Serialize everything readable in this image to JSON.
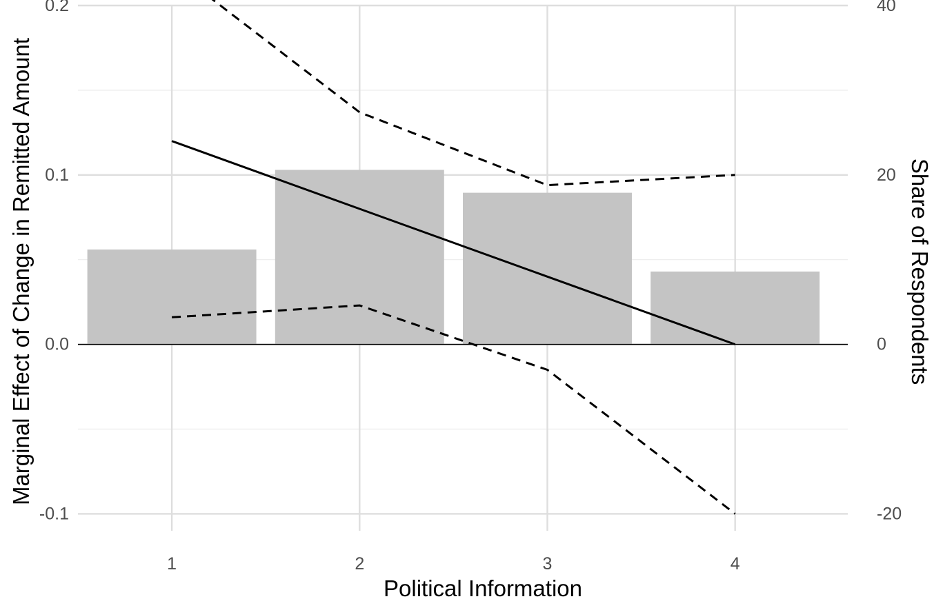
{
  "chart_data": {
    "type": "bar",
    "xlabel": "Political Information",
    "ylabel": "Marginal Effect of Change in Remitted Amount",
    "y2label": "Share of Respondents",
    "x": [
      1,
      2,
      3,
      4
    ],
    "xlim": [
      0.5,
      4.6
    ],
    "ylim": [
      -0.11,
      0.2
    ],
    "y2lim": [
      -22,
      40
    ],
    "xticks": [
      "1",
      "2",
      "3",
      "4"
    ],
    "yticks": [
      -0.1,
      0.0,
      0.1,
      0.2
    ],
    "ytick_labels": [
      "-0.1",
      "0.0",
      "0.1",
      "0.2"
    ],
    "y2ticks": [
      -20,
      0,
      20,
      40
    ],
    "y2tick_labels": [
      "-20",
      "0",
      "20",
      "40"
    ],
    "bars": {
      "axis": "right",
      "values": [
        11.2,
        20.6,
        17.9,
        8.6
      ],
      "color": "#c4c4c4"
    },
    "series": [
      {
        "style": "solid",
        "axis": "left",
        "values": [
          0.12,
          0.08,
          0.04,
          0.0
        ]
      },
      {
        "style": "dashed",
        "axis": "left",
        "values": [
          0.222,
          0.137,
          0.094,
          0.1
        ]
      },
      {
        "style": "dashed",
        "axis": "left",
        "values": [
          0.016,
          0.023,
          -0.015,
          -0.1
        ]
      }
    ],
    "grid": true,
    "legend": "none"
  }
}
